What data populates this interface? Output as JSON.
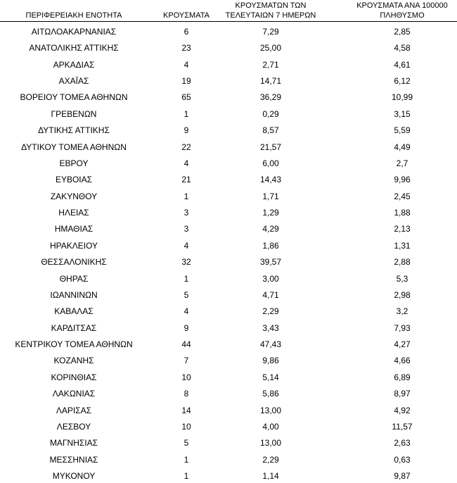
{
  "table": {
    "headers": [
      [
        "ΠΕΡΙΦΕΡΕΙΑΚΗ ΕΝΟΤΗΤΑ"
      ],
      [
        "ΚΡΟΥΣΜΑΤΑ"
      ],
      [
        "ΚΡΟΥΣΜΑΤΩΝ ΤΩΝ",
        "ΤΕΛΕΥΤΑΙΩΝ 7 ΗΜΕΡΩΝ"
      ],
      [
        "ΚΡΟΥΣΜΑΤΑ ΑΝΑ 100000",
        "ΠΛΗΘΥΣΜΟ"
      ]
    ],
    "rows": [
      [
        "ΑΙΤΩΛΟΑΚΑΡΝΑΝΙΑΣ",
        "6",
        "7,29",
        "2,85"
      ],
      [
        "ΑΝΑΤΟΛΙΚΗΣ ΑΤΤΙΚΗΣ",
        "23",
        "25,00",
        "4,58"
      ],
      [
        "ΑΡΚΑΔΙΑΣ",
        "4",
        "2,71",
        "4,61"
      ],
      [
        "ΑΧΑΪΑΣ",
        "19",
        "14,71",
        "6,12"
      ],
      [
        "ΒΟΡΕΙΟΥ ΤΟΜΕΑ ΑΘΗΝΩΝ",
        "65",
        "36,29",
        "10,99"
      ],
      [
        "ΓΡΕΒΕΝΩΝ",
        "1",
        "0,29",
        "3,15"
      ],
      [
        "ΔΥΤΙΚΗΣ ΑΤΤΙΚΗΣ",
        "9",
        "8,57",
        "5,59"
      ],
      [
        "ΔΥΤΙΚΟΥ ΤΟΜΕΑ ΑΘΗΝΩΝ",
        "22",
        "21,57",
        "4,49"
      ],
      [
        "ΕΒΡΟΥ",
        "4",
        "6,00",
        "2,7"
      ],
      [
        "ΕΥΒΟΙΑΣ",
        "21",
        "14,43",
        "9,96"
      ],
      [
        "ΖΑΚΥΝΘΟΥ",
        "1",
        "1,71",
        "2,45"
      ],
      [
        "ΗΛΕΙΑΣ",
        "3",
        "1,29",
        "1,88"
      ],
      [
        "ΗΜΑΘΙΑΣ",
        "3",
        "4,29",
        "2,13"
      ],
      [
        "ΗΡΑΚΛΕΙΟΥ",
        "4",
        "1,86",
        "1,31"
      ],
      [
        "ΘΕΣΣΑΛΟΝΙΚΗΣ",
        "32",
        "39,57",
        "2,88"
      ],
      [
        "ΘΗΡΑΣ",
        "1",
        "3,00",
        "5,3"
      ],
      [
        "ΙΩΑΝΝΙΝΩΝ",
        "5",
        "4,71",
        "2,98"
      ],
      [
        "ΚΑΒΑΛΑΣ",
        "4",
        "2,29",
        "3,2"
      ],
      [
        "ΚΑΡΔΙΤΣΑΣ",
        "9",
        "3,43",
        "7,93"
      ],
      [
        "ΚΕΝΤΡΙΚΟΥ ΤΟΜΕΑ ΑΘΗΝΩΝ",
        "44",
        "47,43",
        "4,27"
      ],
      [
        "ΚΟΖΑΝΗΣ",
        "7",
        "9,86",
        "4,66"
      ],
      [
        "ΚΟΡΙΝΘΙΑΣ",
        "10",
        "5,14",
        "6,89"
      ],
      [
        "ΛΑΚΩΝΙΑΣ",
        "8",
        "5,86",
        "8,97"
      ],
      [
        "ΛΑΡΙΣΑΣ",
        "14",
        "13,00",
        "4,92"
      ],
      [
        "ΛΕΣΒΟΥ",
        "10",
        "4,00",
        "11,57"
      ],
      [
        "ΜΑΓΝΗΣΙΑΣ",
        "5",
        "13,00",
        "2,63"
      ],
      [
        "ΜΕΣΣΗΝΙΑΣ",
        "1",
        "2,29",
        "0,63"
      ],
      [
        "ΜΥΚΟΝΟΥ",
        "1",
        "1,14",
        "9,87"
      ]
    ]
  }
}
